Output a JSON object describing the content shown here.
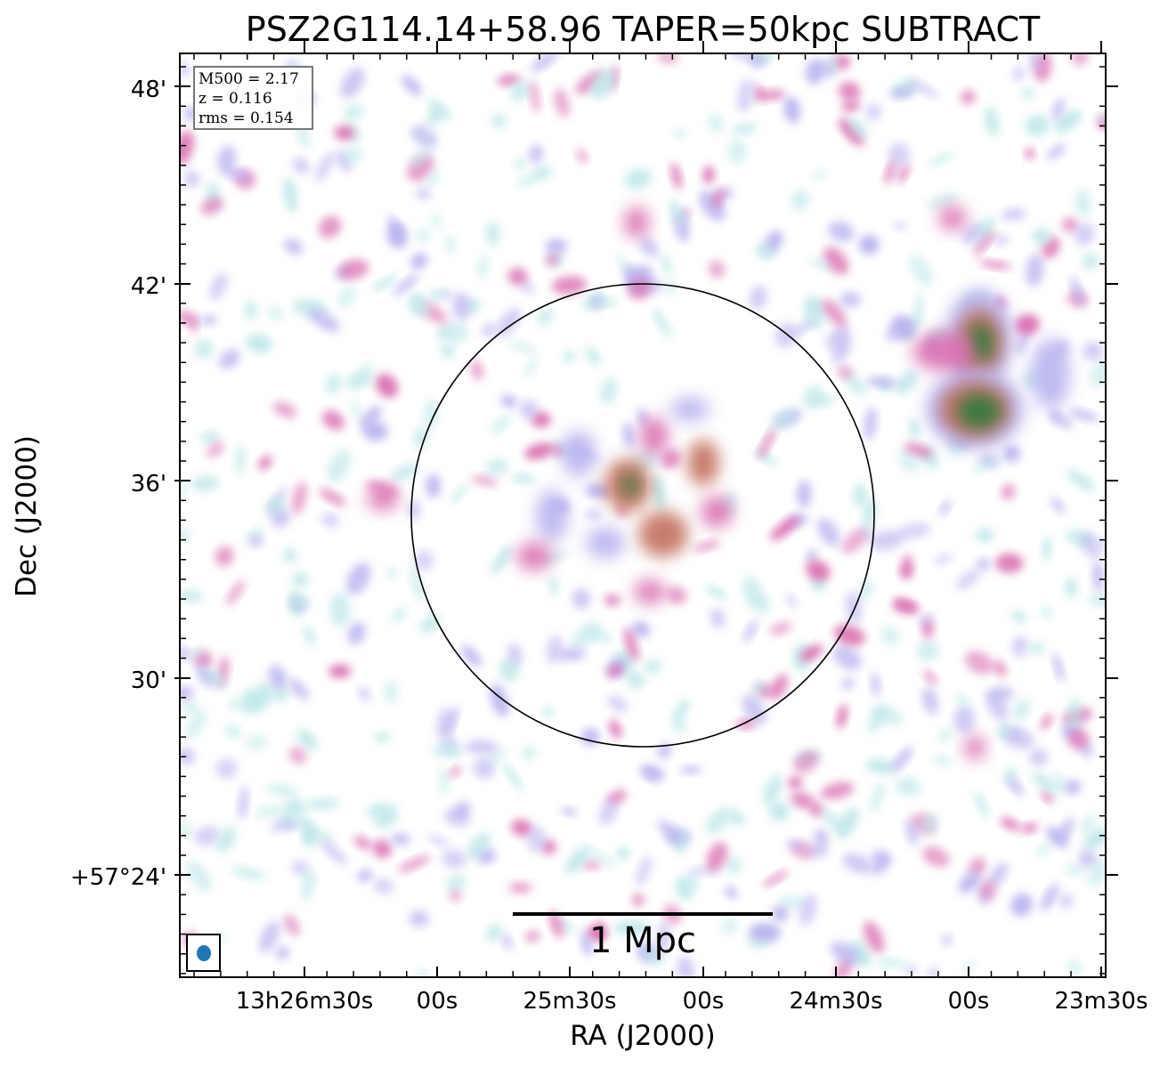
{
  "title": "PSZ2G114.14+58.96 TAPER=50kpc SUBTRACT",
  "x_axis_label": "RA (J2000)",
  "y_axis_label": "Dec (J2000)",
  "y_ticks": [
    "48'",
    "42'",
    "36'",
    "30'",
    "+57°24'"
  ],
  "x_ticks": [
    "13h26m30s",
    "00s",
    "25m30s",
    "00s",
    "24m30s",
    "00s",
    "23m30s"
  ],
  "info": {
    "m500": "M500 = 2.17",
    "z": "z = 0.116",
    "rms": "rms = 0.154"
  },
  "scalebar_label": "1 Mpc",
  "colors": {
    "noise_low": "#bfe6e8",
    "noise_mid": "#b9b3ef",
    "noise_high": "#d96fb0",
    "emission": "#c2705f",
    "peak": "#2f7a3a",
    "beam": "#1f77b4"
  }
}
